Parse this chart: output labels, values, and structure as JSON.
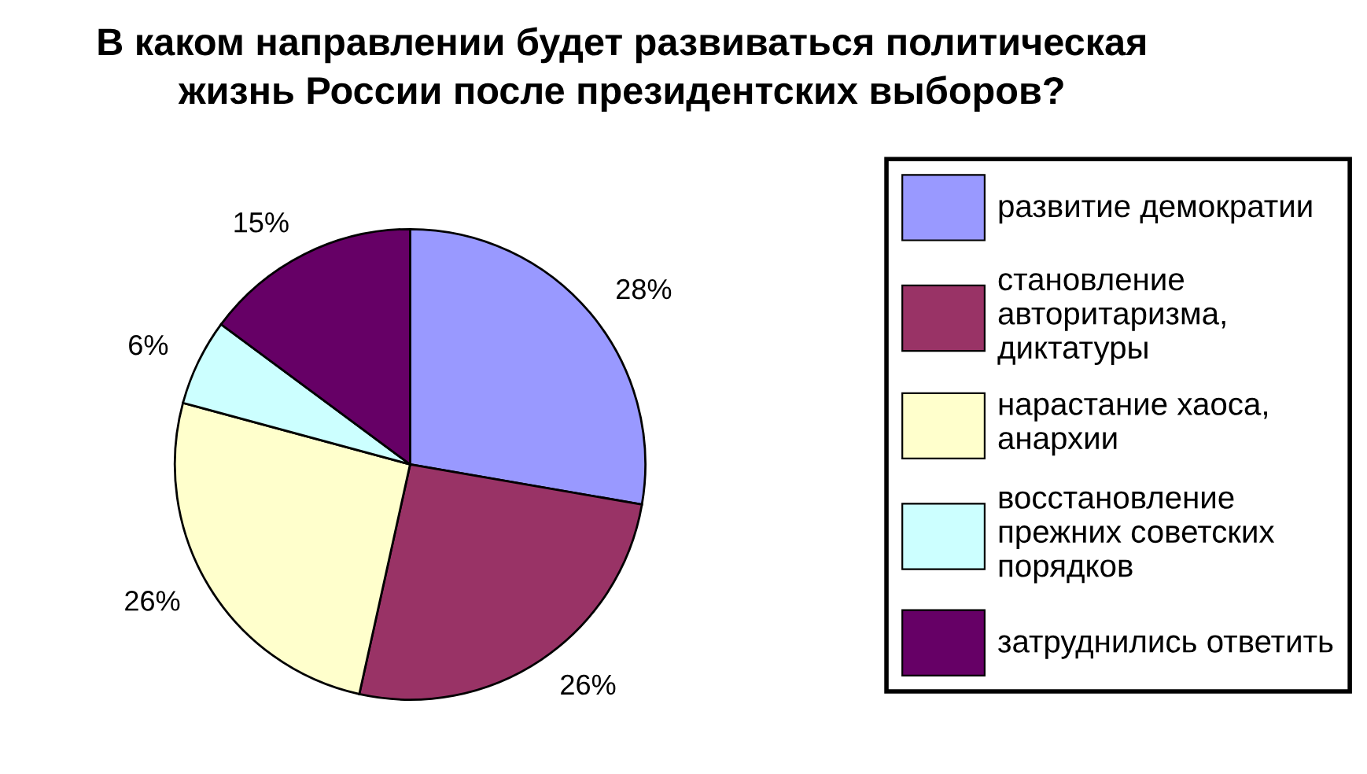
{
  "chart_data": {
    "type": "pie",
    "title": "В каком направлении будет развиваться политическая\nжизнь России после президентских выборов?",
    "categories": [
      "развитие демократии",
      "становление\nавторитаризма,\nдиктатуры",
      "нарастание хаоса,\nанархии",
      "восстановление\nпрежних советских\nпорядков",
      "затруднились ответить"
    ],
    "values": [
      28,
      26,
      26,
      6,
      15
    ],
    "value_labels": [
      "28%",
      "26%",
      "26%",
      "6%",
      "15%"
    ],
    "colors": [
      "#9999ff",
      "#993366",
      "#ffffcc",
      "#ccffff",
      "#660066"
    ],
    "legend": "right"
  }
}
